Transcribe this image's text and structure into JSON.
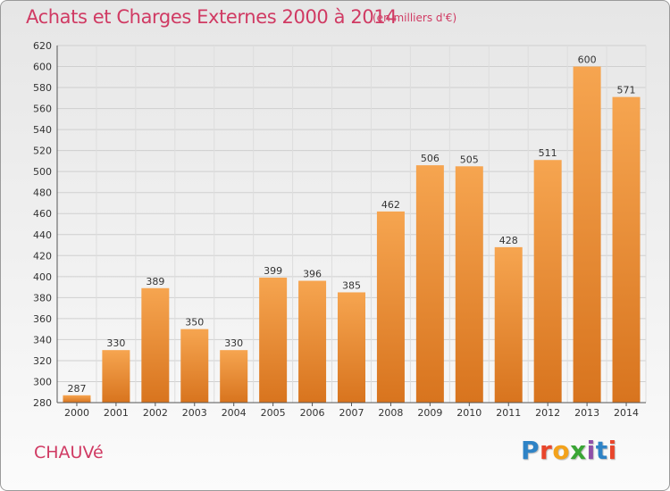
{
  "header": {
    "title": "Achats et Charges Externes 2000 à 2014",
    "subtitle": "(en milliers d'€)"
  },
  "footer": {
    "place": "CHAUVé",
    "logo_letters": [
      "P",
      "r",
      "o",
      "x",
      "i",
      "t",
      "i"
    ]
  },
  "colors": {
    "title": "#d03a63",
    "bar_light": "#f6a550",
    "bar_dark": "#d8741e"
  },
  "chart_data": {
    "type": "bar",
    "categories": [
      "2000",
      "2001",
      "2002",
      "2003",
      "2004",
      "2005",
      "2006",
      "2007",
      "2008",
      "2009",
      "2010",
      "2011",
      "2012",
      "2013",
      "2014"
    ],
    "values": [
      287,
      330,
      389,
      350,
      330,
      399,
      396,
      385,
      462,
      506,
      505,
      428,
      511,
      600,
      571
    ],
    "data_labels": [
      "287",
      "330",
      "389",
      "350",
      "330",
      "399",
      "396",
      "385",
      "462",
      "506",
      "505",
      "428",
      "511",
      "600",
      "571"
    ],
    "ylim": [
      280,
      620
    ],
    "yticks": [
      "280",
      "300",
      "320",
      "340",
      "360",
      "380",
      "400",
      "420",
      "440",
      "460",
      "480",
      "500",
      "520",
      "540",
      "560",
      "580",
      "600",
      "620"
    ],
    "grid": true
  }
}
